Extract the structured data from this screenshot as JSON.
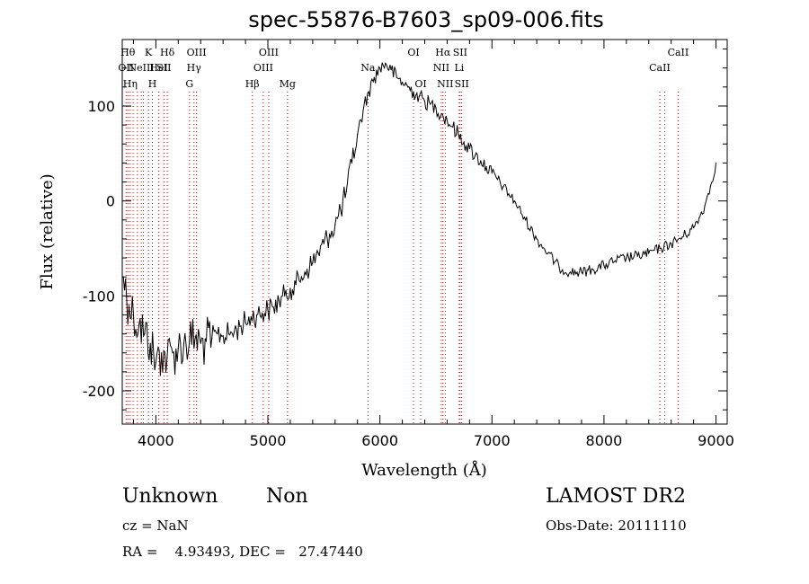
{
  "chart_data": {
    "type": "line",
    "title": "spec-55876-B7603_sp09-006.fits",
    "xlabel": "Wavelength (Å)",
    "ylabel": "Flux (relative)",
    "xlim": [
      3700,
      9100
    ],
    "ylim": [
      -235,
      170
    ],
    "xticks": [
      4000,
      5000,
      6000,
      7000,
      8000,
      9000
    ],
    "yticks": [
      -200,
      -100,
      0,
      100
    ],
    "grid": false,
    "line_color": "#000000",
    "marker_color": "#cc0000",
    "series": [
      {
        "name": "",
        "x": [
          3710,
          3760,
          3800,
          3850,
          3900,
          3950,
          4000,
          4050,
          4100,
          4150,
          4200,
          4250,
          4300,
          4350,
          4400,
          4450,
          4500,
          4550,
          4600,
          4650,
          4700,
          4750,
          4800,
          4850,
          4900,
          4950,
          5000,
          5050,
          5100,
          5150,
          5200,
          5250,
          5300,
          5350,
          5400,
          5450,
          5500,
          5550,
          5600,
          5650,
          5700,
          5750,
          5800,
          5850,
          5900,
          5950,
          6000,
          6050,
          6100,
          6150,
          6200,
          6250,
          6300,
          6350,
          6400,
          6450,
          6500,
          6550,
          6600,
          6650,
          6700,
          6750,
          6800,
          6850,
          6900,
          6950,
          7000,
          7100,
          7200,
          7300,
          7400,
          7500,
          7600,
          7700,
          7800,
          7900,
          8000,
          8100,
          8200,
          8300,
          8400,
          8500,
          8600,
          8700,
          8800,
          8850,
          8900,
          8950,
          9000
        ],
        "y": [
          -80,
          -110,
          -120,
          -130,
          -140,
          -150,
          -170,
          -160,
          -165,
          -160,
          -155,
          -150,
          -148,
          -145,
          -150,
          -148,
          -145,
          -140,
          -142,
          -140,
          -138,
          -132,
          -128,
          -122,
          -120,
          -118,
          -115,
          -112,
          -105,
          -100,
          -92,
          -88,
          -80,
          -72,
          -65,
          -55,
          -45,
          -35,
          -25,
          -10,
          10,
          40,
          70,
          95,
          115,
          130,
          140,
          145,
          138,
          130,
          125,
          120,
          115,
          110,
          105,
          102,
          98,
          92,
          85,
          78,
          70,
          62,
          55,
          48,
          42,
          36,
          30,
          15,
          0,
          -20,
          -40,
          -55,
          -70,
          -75,
          -75,
          -72,
          -68,
          -63,
          -60,
          -58,
          -55,
          -50,
          -45,
          -38,
          -28,
          -18,
          -5,
          15,
          40
        ]
      }
    ],
    "lines": [
      {
        "x": 3734,
        "label": "OII",
        "row": 1
      },
      {
        "x": 3750,
        "label": "Hθ",
        "row": 0
      },
      {
        "x": 3771,
        "label": "Hη",
        "row": 2
      },
      {
        "x": 3797,
        "label": "",
        "row": -1
      },
      {
        "x": 3835,
        "label": "",
        "row": -1
      },
      {
        "x": 3869,
        "label": "NeIII",
        "row": 1
      },
      {
        "x": 3889,
        "label": "",
        "row": -1
      },
      {
        "x": 3934,
        "label": "K",
        "row": 0
      },
      {
        "x": 3969,
        "label": "H",
        "row": 2
      },
      {
        "x": 4026,
        "label": "HeI",
        "row": 1
      },
      {
        "x": 4072,
        "label": "SII",
        "row": 1
      },
      {
        "x": 4102,
        "label": "Hδ",
        "row": 0
      },
      {
        "x": 4300,
        "label": "G",
        "row": 2
      },
      {
        "x": 4340,
        "label": "Hγ",
        "row": 1
      },
      {
        "x": 4363,
        "label": "OIII",
        "row": 0
      },
      {
        "x": 4861,
        "label": "Hβ",
        "row": 2
      },
      {
        "x": 4959,
        "label": "OIII",
        "row": 1
      },
      {
        "x": 5007,
        "label": "OIII",
        "row": 0
      },
      {
        "x": 5175,
        "label": "Mg",
        "row": 2
      },
      {
        "x": 5893,
        "label": "Na",
        "row": 1
      },
      {
        "x": 6300,
        "label": "OI",
        "row": 0
      },
      {
        "x": 6364,
        "label": "OI",
        "row": 2
      },
      {
        "x": 6548,
        "label": "NII",
        "row": 1
      },
      {
        "x": 6563,
        "label": "Hα",
        "row": 0
      },
      {
        "x": 6583,
        "label": "NII",
        "row": 2
      },
      {
        "x": 6708,
        "label": "Li",
        "row": 1
      },
      {
        "x": 6716,
        "label": "SII",
        "row": 0
      },
      {
        "x": 6731,
        "label": "SII",
        "row": 2
      },
      {
        "x": 8498,
        "label": "CaII",
        "row": 1
      },
      {
        "x": 8542,
        "label": "",
        "row": -1
      },
      {
        "x": 8662,
        "label": "CaII",
        "row": 0
      }
    ]
  },
  "info": {
    "class": "Unknown",
    "subclass": "Non",
    "cz": "cz = NaN",
    "coords": "RA =    4.93493, DEC =   27.47440",
    "survey": "LAMOST DR2",
    "obs_date": "Obs-Date: 20111110"
  }
}
